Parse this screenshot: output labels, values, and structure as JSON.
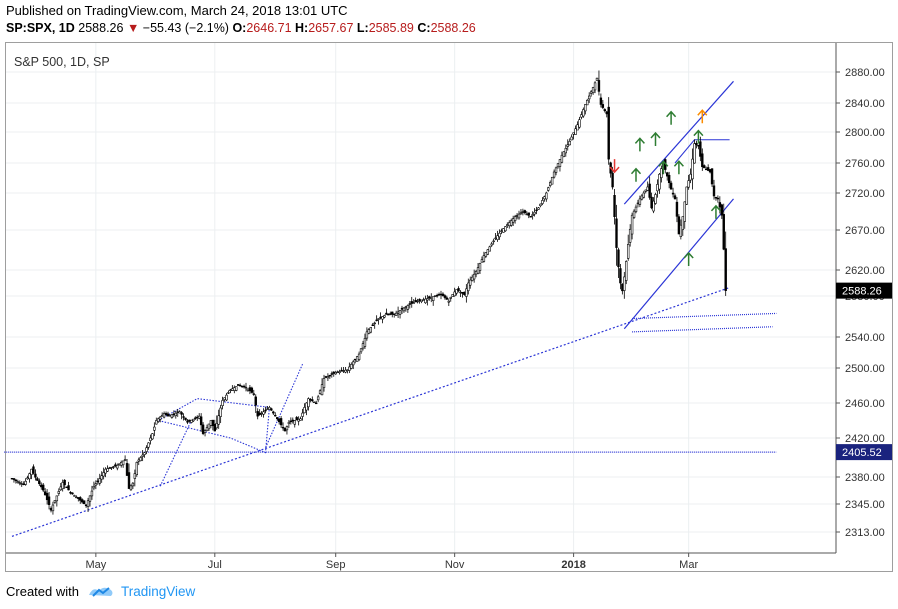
{
  "header": {
    "published": "Published on TradingView.com, March 24, 2018 13:01 UTC",
    "symbol": "SP:SPX, 1D",
    "last": "2588.26",
    "arrow": "▼",
    "change": "−55.43 (−2.1%)",
    "o_label": "O:",
    "o": "2646.71",
    "h_label": "H:",
    "h": "2657.67",
    "l_label": "L:",
    "l": "2585.89",
    "c_label": "C:",
    "c": "2588.26"
  },
  "footer": {
    "created_with": "Created with",
    "brand": "TradingView"
  },
  "chart_data": {
    "type": "candlestick",
    "title": "S&P 500, 1D, SP",
    "y_ticks": [
      2313.0,
      2345.0,
      2380.0,
      2420.0,
      2460.0,
      2500.0,
      2540.0,
      2580.0,
      2620.0,
      2670.0,
      2720.0,
      2760.0,
      2800.0,
      2840.0,
      2880.0
    ],
    "x_labels": [
      {
        "label": "May",
        "day": 43,
        "bold": false
      },
      {
        "label": "Jul",
        "day": 104,
        "bold": false
      },
      {
        "label": "Sep",
        "day": 166,
        "bold": false
      },
      {
        "label": "Nov",
        "day": 227,
        "bold": false
      },
      {
        "label": "2018",
        "day": 288,
        "bold": true
      },
      {
        "label": "Mar",
        "day": 347,
        "bold": false
      }
    ],
    "last_price": "2588.26",
    "last_price_value": 2588.26,
    "hline_label": "2405.52",
    "hline_value": 2405.52,
    "colors": {
      "up": "#000000",
      "down": "#000000",
      "drawing": "#2b35d6",
      "up_arrow": "#2e7d32",
      "down_arrow": "#e53935",
      "warn_arrow": "#fb8c00",
      "price_tag": "#000000",
      "hline_tag": "#1a237e"
    },
    "anchors": [
      [
        0,
        2378
      ],
      [
        6,
        2370
      ],
      [
        10,
        2388
      ],
      [
        16,
        2363
      ],
      [
        20,
        2338
      ],
      [
        26,
        2373
      ],
      [
        30,
        2360
      ],
      [
        34,
        2352
      ],
      [
        38,
        2343
      ],
      [
        42,
        2368
      ],
      [
        48,
        2388
      ],
      [
        54,
        2392
      ],
      [
        58,
        2398
      ],
      [
        60,
        2365
      ],
      [
        62,
        2372
      ],
      [
        64,
        2395
      ],
      [
        68,
        2405
      ],
      [
        72,
        2425
      ],
      [
        74,
        2440
      ],
      [
        78,
        2448
      ],
      [
        80,
        2445
      ],
      [
        86,
        2450
      ],
      [
        90,
        2438
      ],
      [
        96,
        2445
      ],
      [
        98,
        2425
      ],
      [
        100,
        2432
      ],
      [
        102,
        2440
      ],
      [
        104,
        2428
      ],
      [
        108,
        2463
      ],
      [
        112,
        2475
      ],
      [
        116,
        2480
      ],
      [
        120,
        2478
      ],
      [
        124,
        2470
      ],
      [
        126,
        2445
      ],
      [
        132,
        2455
      ],
      [
        136,
        2442
      ],
      [
        140,
        2428
      ],
      [
        142,
        2438
      ],
      [
        148,
        2442
      ],
      [
        150,
        2455
      ],
      [
        152,
        2465
      ],
      [
        156,
        2460
      ],
      [
        160,
        2488
      ],
      [
        166,
        2495
      ],
      [
        172,
        2498
      ],
      [
        175,
        2508
      ],
      [
        178,
        2518
      ],
      [
        182,
        2545
      ],
      [
        188,
        2558
      ],
      [
        192,
        2562
      ],
      [
        196,
        2562
      ],
      [
        204,
        2572
      ],
      [
        208,
        2575
      ],
      [
        214,
        2578
      ],
      [
        220,
        2582
      ],
      [
        224,
        2575
      ],
      [
        228,
        2590
      ],
      [
        232,
        2582
      ],
      [
        234,
        2600
      ],
      [
        238,
        2618
      ],
      [
        242,
        2638
      ],
      [
        248,
        2660
      ],
      [
        252,
        2672
      ],
      [
        258,
        2688
      ],
      [
        262,
        2695
      ],
      [
        266,
        2688
      ],
      [
        270,
        2700
      ],
      [
        274,
        2720
      ],
      [
        278,
        2748
      ],
      [
        282,
        2770
      ],
      [
        286,
        2788
      ],
      [
        290,
        2810
      ],
      [
        294,
        2838
      ],
      [
        298,
        2860
      ],
      [
        300,
        2872
      ],
      [
        302,
        2838
      ],
      [
        305,
        2825
      ],
      [
        306,
        2765
      ],
      [
        308,
        2728
      ],
      [
        310,
        2648
      ],
      [
        312,
        2600
      ],
      [
        313,
        2588
      ],
      [
        316,
        2652
      ],
      [
        318,
        2690
      ],
      [
        322,
        2712
      ],
      [
        326,
        2728
      ],
      [
        328,
        2700
      ],
      [
        330,
        2718
      ],
      [
        332,
        2745
      ],
      [
        334,
        2760
      ],
      [
        338,
        2725
      ],
      [
        340,
        2712
      ],
      [
        342,
        2665
      ],
      [
        344,
        2688
      ],
      [
        346,
        2728
      ],
      [
        348,
        2745
      ],
      [
        350,
        2785
      ],
      [
        352,
        2782
      ],
      [
        354,
        2755
      ],
      [
        356,
        2752
      ],
      [
        358,
        2748
      ],
      [
        360,
        2716
      ],
      [
        362,
        2712
      ],
      [
        364,
        2690
      ],
      [
        365,
        2646
      ],
      [
        366,
        2588
      ]
    ],
    "drawings": {
      "support_trend": {
        "from": [
          0,
          2308
        ],
        "to": [
          368,
          2593
        ]
      },
      "hline": {
        "from": [
          -4,
          2405.52
        ],
        "to": [
          392,
          2405.52
        ]
      },
      "channel_low": {
        "from": [
          318,
          2545
        ],
        "to": [
          390,
          2550
        ]
      },
      "channel_low2": {
        "from": [
          318,
          2558
        ],
        "to": [
          392,
          2563
        ]
      },
      "rising_upper": {
        "from": [
          314,
          2705
        ],
        "to": [
          370,
          2868
        ]
      },
      "rising_lower": {
        "from": [
          314,
          2548
        ],
        "to": [
          370,
          2712
        ]
      }
    }
  }
}
